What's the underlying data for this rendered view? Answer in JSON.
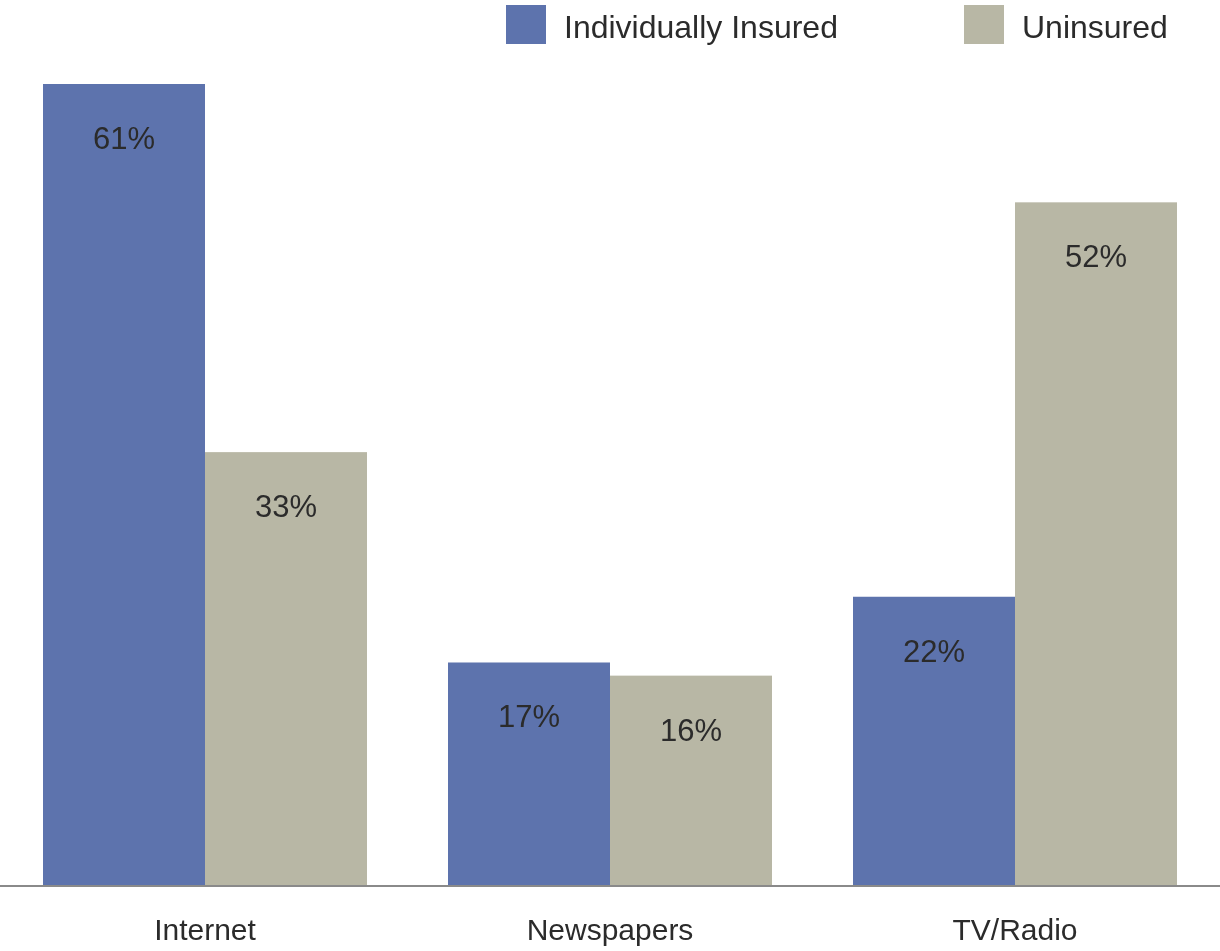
{
  "chart_data": {
    "type": "bar",
    "categories": [
      "Internet",
      "Newspapers",
      "TV/Radio"
    ],
    "series": [
      {
        "name": "Individually Insured",
        "color": "#5d73ad",
        "values": [
          61,
          17,
          22
        ],
        "value_labels": [
          "61%",
          "17%",
          "22%"
        ]
      },
      {
        "name": "Uninsured",
        "color": "#b8b7a5",
        "values": [
          33,
          16,
          52
        ],
        "value_labels": [
          "33%",
          "16%",
          "52%"
        ]
      }
    ],
    "legend": "top right"
  }
}
